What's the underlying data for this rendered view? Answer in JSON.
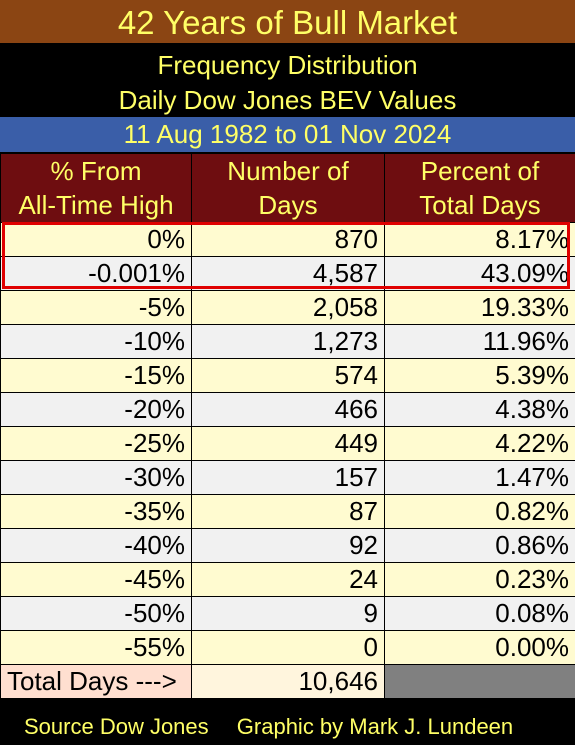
{
  "title": "42 Years of Bull Market",
  "subtitle1": "Frequency Distribution",
  "subtitle2": "Daily Dow Jones BEV Values",
  "date_range": "11 Aug 1982 to 01 Nov 2024",
  "table": {
    "headers": [
      {
        "line1": "% From",
        "line2": "All-Time High"
      },
      {
        "line1": "Number of",
        "line2": "Days"
      },
      {
        "line1": "Percent of",
        "line2": "Total Days"
      }
    ],
    "rows": [
      {
        "pct_from_high": "0%",
        "days": "870",
        "pct_total": "8.17%"
      },
      {
        "pct_from_high": "-0.001%",
        "days": "4,587",
        "pct_total": "43.09%"
      },
      {
        "pct_from_high": "-5%",
        "days": "2,058",
        "pct_total": "19.33%"
      },
      {
        "pct_from_high": "-10%",
        "days": "1,273",
        "pct_total": "11.96%"
      },
      {
        "pct_from_high": "-15%",
        "days": "574",
        "pct_total": "5.39%"
      },
      {
        "pct_from_high": "-20%",
        "days": "466",
        "pct_total": "4.38%"
      },
      {
        "pct_from_high": "-25%",
        "days": "449",
        "pct_total": "4.22%"
      },
      {
        "pct_from_high": "-30%",
        "days": "157",
        "pct_total": "1.47%"
      },
      {
        "pct_from_high": "-35%",
        "days": "87",
        "pct_total": "0.82%"
      },
      {
        "pct_from_high": "-40%",
        "days": "92",
        "pct_total": "0.86%"
      },
      {
        "pct_from_high": "-45%",
        "days": "24",
        "pct_total": "0.23%"
      },
      {
        "pct_from_high": "-50%",
        "days": "9",
        "pct_total": "0.08%"
      },
      {
        "pct_from_high": "-55%",
        "days": "0",
        "pct_total": "0.00%"
      }
    ],
    "total_label": "Total Days --->",
    "total_days": "10,646"
  },
  "footer": {
    "source": "Source Dow Jones",
    "credit": "Graphic by Mark J. Lundeen"
  },
  "colors": {
    "title_bg": "#8b4513",
    "header_bg": "#6e0d10",
    "date_bg": "#3a5ea8",
    "text_yellow": "#ffff66",
    "highlight_border": "#e00000"
  }
}
